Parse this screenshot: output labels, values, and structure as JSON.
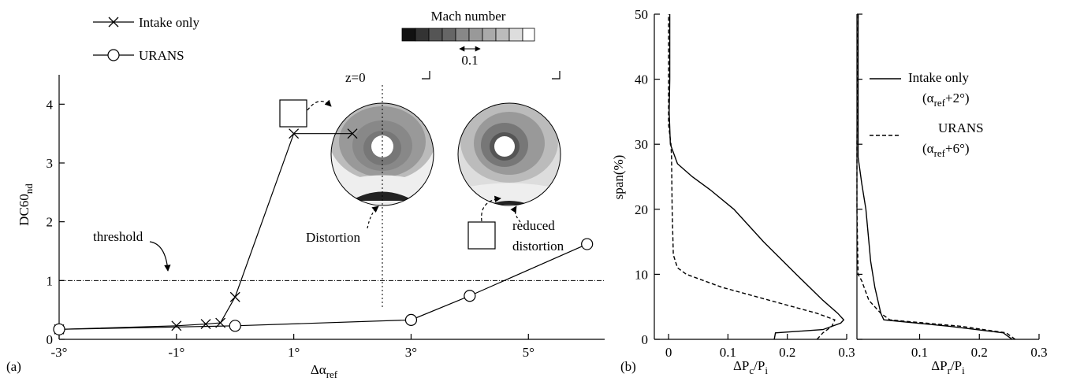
{
  "chart_data": [
    {
      "type": "line",
      "xlabel": [
        "Δα",
        "ref"
      ],
      "ylabel": [
        "DC60",
        "nd"
      ],
      "xlim": [
        -3,
        6.3
      ],
      "ylim": [
        0,
        4.5
      ],
      "xticks": [
        {
          "value": -3,
          "label": "-3°"
        },
        {
          "value": -1,
          "label": "-1°"
        },
        {
          "value": 1,
          "label": "1°"
        },
        {
          "value": 3,
          "label": "3°"
        },
        {
          "value": 5,
          "label": "5°"
        }
      ],
      "yticks": [
        0,
        1,
        2,
        3,
        4
      ],
      "series": [
        {
          "name": "Intake only",
          "marker": "x",
          "color": "#000000",
          "x": [
            -3,
            -1,
            -0.5,
            -0.25,
            0,
            1,
            2
          ],
          "values": [
            0.17,
            0.23,
            0.26,
            0.28,
            0.72,
            3.5,
            3.5
          ]
        },
        {
          "name": "URANS",
          "marker": "o",
          "color": "#000000",
          "x": [
            -3,
            0,
            3,
            4,
            6
          ],
          "values": [
            0.17,
            0.23,
            0.33,
            0.74,
            1.62
          ]
        }
      ],
      "threshold": {
        "value": 1,
        "label": "threshold"
      },
      "annotations": {
        "panel": "(a)",
        "mach": "Mach number",
        "mach_scale": "0.1",
        "z": "z=0",
        "distortion": "Distortion",
        "reduced": [
          "reduced",
          "distortion"
        ]
      }
    },
    {
      "type": "profile",
      "xlabel": [
        "ΔP",
        "c",
        "/P",
        "i"
      ],
      "ylabel": "span(%)",
      "xlim": [
        -0.024,
        0.3
      ],
      "ylim": [
        0,
        50
      ],
      "xticks": [
        0,
        0.1,
        0.2,
        0.3
      ],
      "yticks": [
        0,
        10,
        20,
        30,
        40,
        50
      ],
      "show_ytick_labels": true,
      "panel": "(b)",
      "series": [
        {
          "dash": "solid",
          "x": [
            0.178,
            0.18,
            0.26,
            0.29,
            0.295,
            0.285,
            0.26,
            0.215,
            0.16,
            0.11,
            0.07,
            0.04,
            0.015,
            0.003,
            0.001,
            0.002,
            0.002,
            0.002
          ],
          "values": [
            0,
            1,
            1.5,
            2.5,
            3,
            4,
            6,
            10,
            15,
            20,
            23,
            25,
            27,
            30,
            35,
            40,
            45,
            50
          ]
        },
        {
          "dash": "dashed",
          "x": [
            0.25,
            0.26,
            0.275,
            0.28,
            0.25,
            0.17,
            0.09,
            0.03,
            0.015,
            0.008,
            0.006,
            0.005,
            0.004,
            0,
            0,
            0,
            0
          ],
          "values": [
            0,
            1,
            2,
            3,
            4,
            6,
            8,
            10,
            11,
            13,
            20,
            28,
            30,
            33,
            38,
            45,
            50
          ]
        }
      ]
    },
    {
      "type": "profile",
      "xlabel": [
        "ΔP",
        "r",
        "/P",
        "i"
      ],
      "xlim": [
        -0.005,
        0.3
      ],
      "ylim": [
        0,
        50
      ],
      "xticks": [
        0.1,
        0.2,
        0.3
      ],
      "yticks": [
        0,
        10,
        20,
        30,
        40,
        50
      ],
      "show_ytick_labels": false,
      "series": [
        {
          "name": "Intake only",
          "note": [
            "(α",
            "ref",
            "+2°)"
          ],
          "dash": "solid",
          "x": [
            0.255,
            0.24,
            0.15,
            0.04,
            0.035,
            0.025,
            0.018,
            0.014,
            0.01,
            0.003,
            -0.003,
            -0.003,
            -0.003
          ],
          "values": [
            0,
            1,
            2,
            3,
            4,
            8,
            12,
            16,
            20,
            24,
            28,
            35,
            50
          ]
        },
        {
          "name": "URANS",
          "note": [
            "(α",
            "ref",
            "+6°)"
          ],
          "dash": "dashed",
          "x": [
            0.26,
            0.245,
            0.17,
            0.05,
            0.035,
            0.015,
            0.003,
            -0.003,
            -0.005,
            -0.005,
            -0.003
          ],
          "values": [
            0,
            1,
            2,
            3,
            4,
            6,
            9,
            10,
            20,
            30,
            50
          ]
        }
      ]
    }
  ]
}
